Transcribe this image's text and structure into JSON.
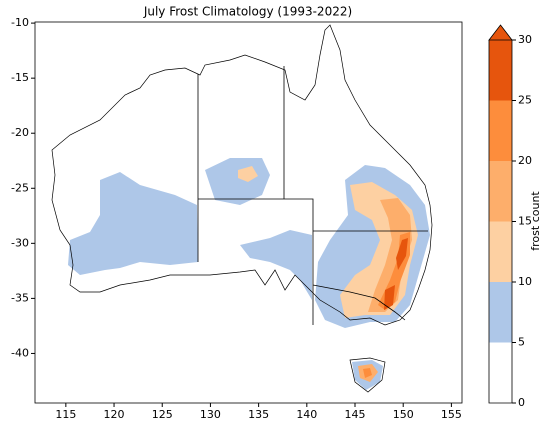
{
  "chart_data": {
    "type": "map",
    "title": "July Frost Climatology (1993-2022)",
    "xlim": [
      111.8,
      156.1
    ],
    "ylim": [
      -44.5,
      -9.9
    ],
    "xticks": [
      115,
      120,
      125,
      130,
      135,
      140,
      145,
      150,
      155
    ],
    "yticks": [
      -10,
      -15,
      -20,
      -25,
      -30,
      -35,
      -40
    ],
    "colorbar": {
      "label": "frost count",
      "lim": [
        0,
        30
      ],
      "ticks": [
        0,
        5,
        10,
        15,
        20,
        25,
        30
      ],
      "colors": [
        "#ffffff",
        "#aec7e8",
        "#fdd0a2",
        "#fdae6b",
        "#fd8d3c",
        "#e6550d"
      ],
      "extend_color": "#e6550d"
    }
  }
}
